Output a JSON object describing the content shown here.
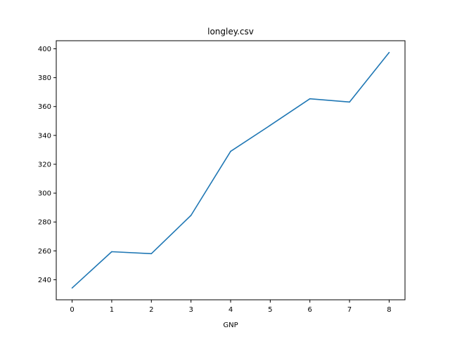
{
  "chart_data": {
    "type": "line",
    "title": "longley.csv",
    "xlabel": "GNP",
    "ylabel": "",
    "x": [
      0,
      1,
      2,
      3,
      4,
      5,
      6,
      7,
      8
    ],
    "series": [
      {
        "values": [
          234.289,
          259.426,
          258.054,
          284.599,
          328.975,
          346.999,
          365.385,
          363.112,
          397.469
        ],
        "color": "#1f77b4"
      }
    ],
    "xticks": [
      "0",
      "1",
      "2",
      "3",
      "4",
      "5",
      "6",
      "7",
      "8"
    ],
    "yticks": [
      "240",
      "260",
      "280",
      "300",
      "320",
      "340",
      "360",
      "380",
      "400"
    ],
    "xlim": [
      -0.4,
      8.4
    ],
    "ylim": [
      226.1,
      405.6
    ],
    "grid": false
  }
}
